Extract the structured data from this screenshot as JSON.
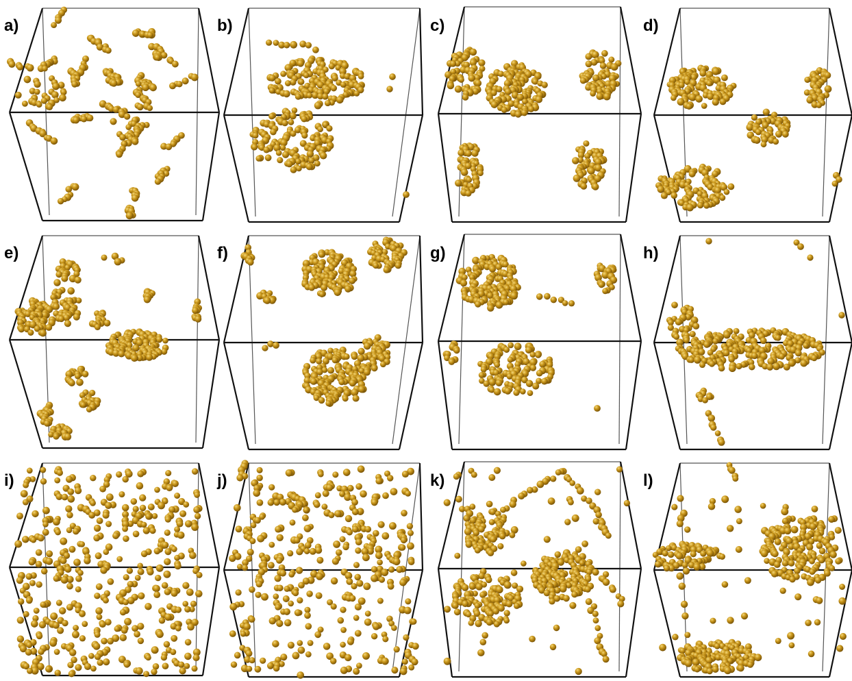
{
  "figure": {
    "panels": [
      {
        "label": "a)",
        "pattern": "network"
      },
      {
        "label": "b)",
        "pattern": "two-dense-clusters"
      },
      {
        "label": "c)",
        "pattern": "five-compact-clusters"
      },
      {
        "label": "d)",
        "pattern": "four-compact-clusters"
      },
      {
        "label": "e)",
        "pattern": "many-small-clusters"
      },
      {
        "label": "f)",
        "pattern": "round-clusters"
      },
      {
        "label": "g)",
        "pattern": "two-large-clusters"
      },
      {
        "label": "h)",
        "pattern": "single-slab-cluster"
      },
      {
        "label": "i)",
        "pattern": "uniform-dispersed"
      },
      {
        "label": "j)",
        "pattern": "uniform-dispersed-chains"
      },
      {
        "label": "k)",
        "pattern": "stringy-network"
      },
      {
        "label": "l)",
        "pattern": "large-aggregate-plus-dispersed"
      }
    ],
    "colors": {
      "particle": "#c9961a",
      "particle_highlight": "#f3d77a",
      "particle_shadow": "#7a5406",
      "box_edge": "#111111"
    }
  }
}
